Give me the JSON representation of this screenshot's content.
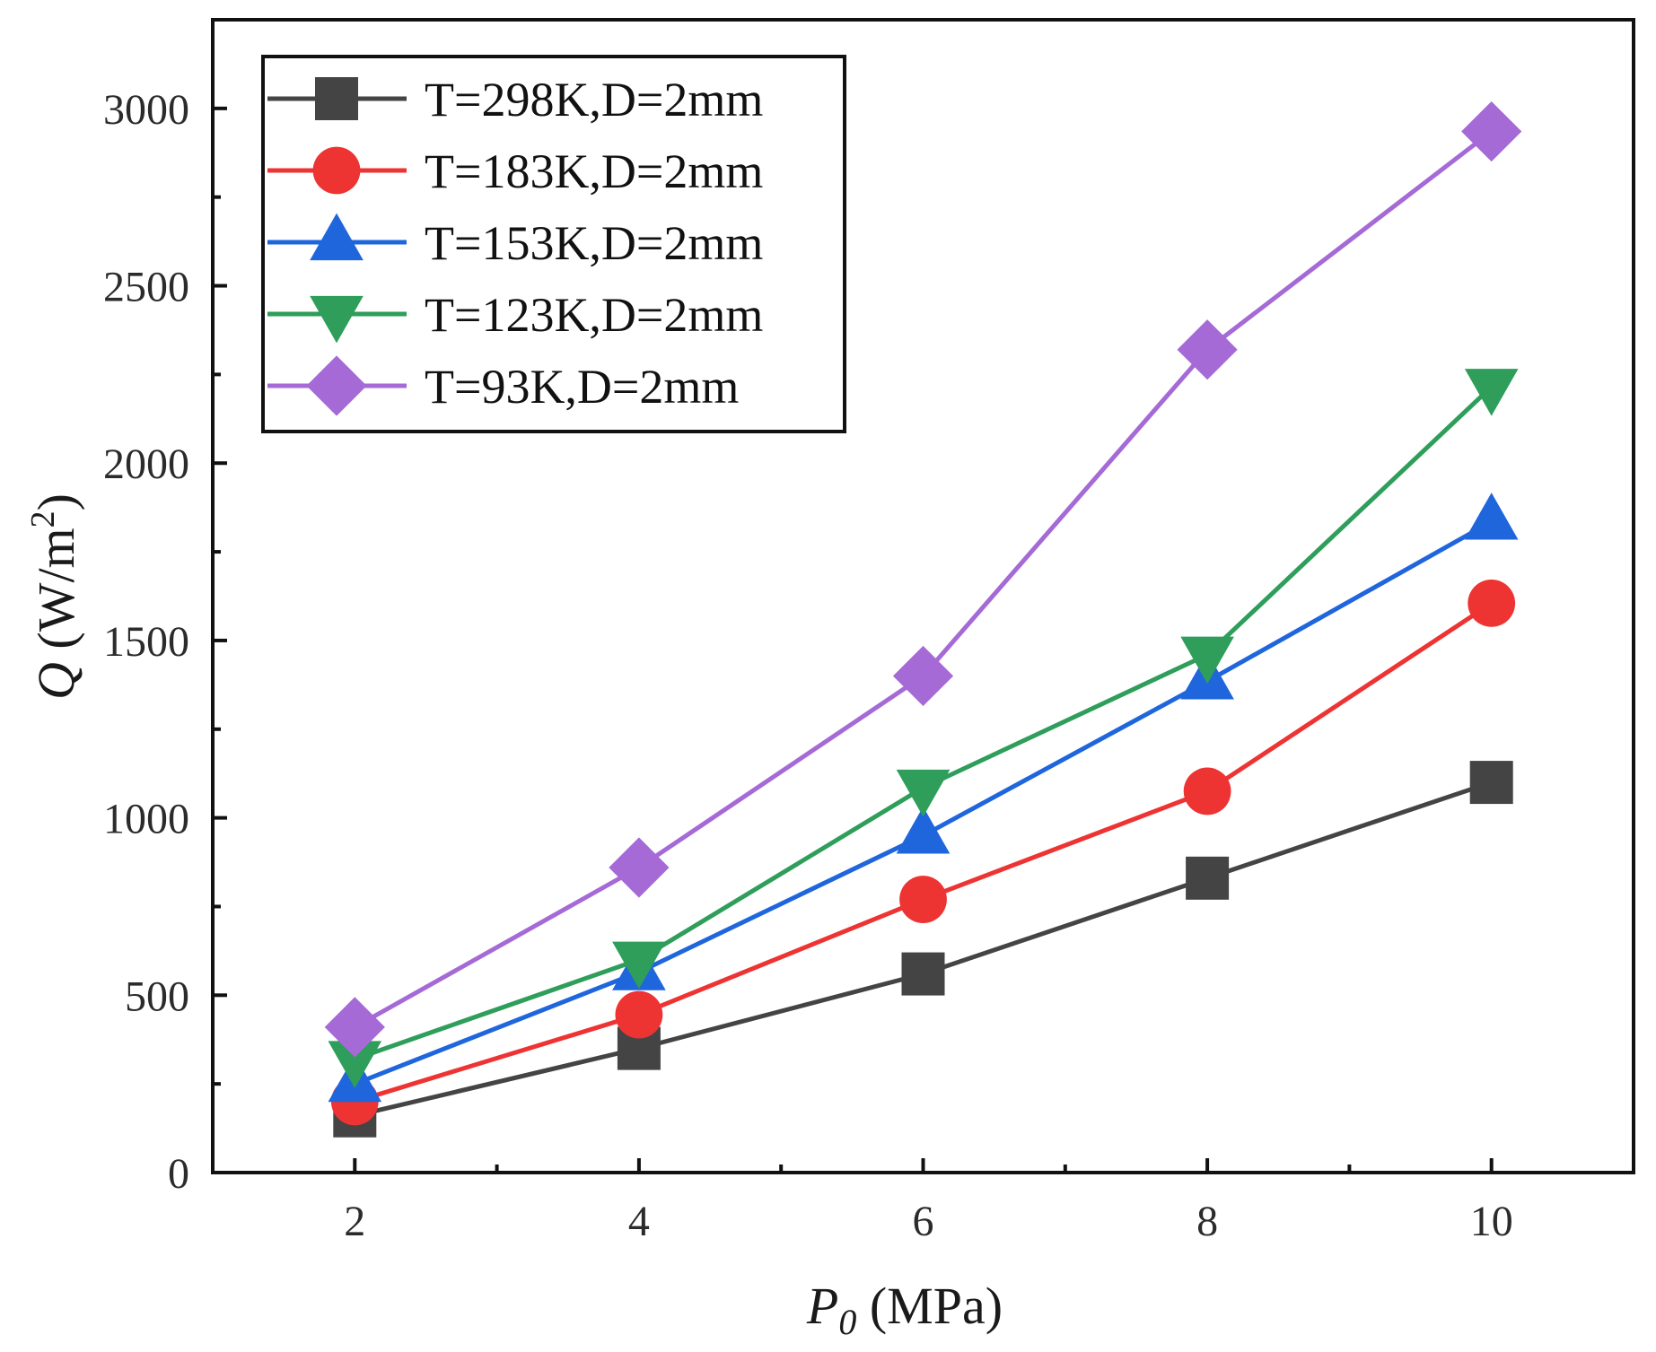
{
  "chart_data": {
    "type": "line",
    "title": "",
    "xlabel": {
      "symbol": "P",
      "subscript": "0",
      "unit": " (MPa)"
    },
    "ylabel": {
      "symbol": "Q",
      "unit": " (W/m",
      "superscript": "2",
      "close": ")"
    },
    "x": [
      2,
      4,
      6,
      8,
      10
    ],
    "xlim": [
      1,
      11
    ],
    "ylim": [
      0,
      3250
    ],
    "xticks": [
      2,
      4,
      6,
      8,
      10
    ],
    "xticks_minor": [
      3,
      5,
      7,
      9
    ],
    "yticks": [
      0,
      500,
      1000,
      1500,
      2000,
      2500,
      3000
    ],
    "yticks_minor": [
      250,
      750,
      1250,
      1750,
      2250,
      2750
    ],
    "grid": false,
    "legend_position": "top-left",
    "series": [
      {
        "name": "T=298K,D=2mm",
        "color": "#444444",
        "marker": "square",
        "values": [
          160,
          350,
          560,
          830,
          1100
        ]
      },
      {
        "name": "T=183K,D=2mm",
        "color": "#ee3333",
        "marker": "circle",
        "values": [
          200,
          445,
          770,
          1075,
          1605
        ]
      },
      {
        "name": "T=153K,D=2mm",
        "color": "#1f66dd",
        "marker": "triangle-up",
        "values": [
          250,
          565,
          950,
          1385,
          1835
        ]
      },
      {
        "name": "T=123K,D=2mm",
        "color": "#2e9e5a",
        "marker": "triangle-down",
        "values": [
          320,
          600,
          1085,
          1460,
          2215
        ]
      },
      {
        "name": "T=93K,D=2mm",
        "color": "#a56ad6",
        "marker": "diamond",
        "values": [
          410,
          860,
          1400,
          2320,
          2935
        ]
      }
    ]
  }
}
